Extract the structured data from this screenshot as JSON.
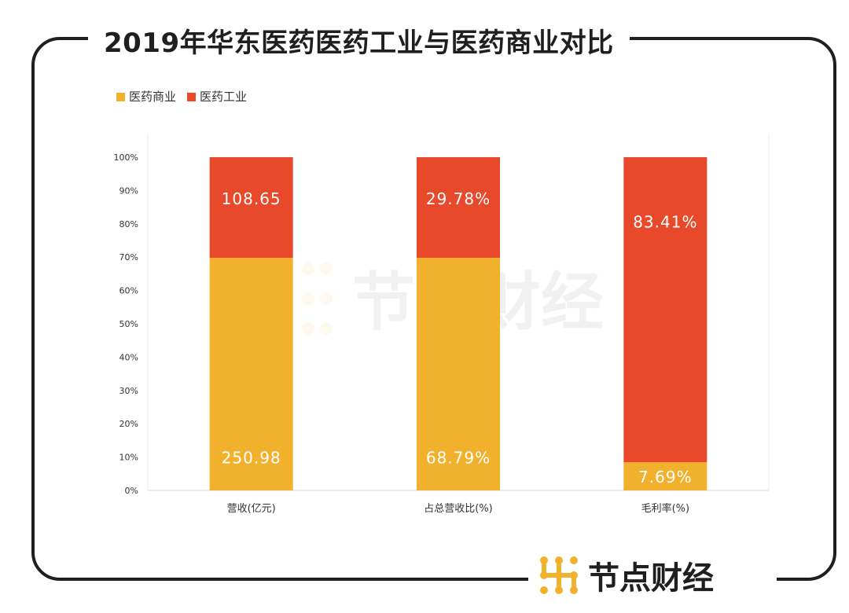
{
  "page": {
    "title": "2019年华东医药医药工业与医药商业对比",
    "brand": "节点财经",
    "watermark": "节点财经"
  },
  "colors": {
    "commerce": "#F2B12C",
    "industry": "#E8492A",
    "frame": "#1F1F1F",
    "axis_text": "#333333",
    "brand_accent": "#F2B12C"
  },
  "chart_data": {
    "type": "bar",
    "stacked": "percent",
    "title": "",
    "xlabel": "",
    "ylabel": "",
    "ylim": [
      0,
      100
    ],
    "yticks": [
      "0%",
      "10%",
      "20%",
      "30%",
      "40%",
      "50%",
      "60%",
      "70%",
      "80%",
      "90%",
      "100%"
    ],
    "grid": false,
    "legend": "top-left",
    "categories": [
      "营收(亿元)",
      "占总营收比(%)",
      "毛利率(%)"
    ],
    "series": [
      {
        "name": "医药商业",
        "color": "#F2B12C",
        "labels": [
          "250.98",
          "68.79%",
          "7.69%"
        ],
        "percent_share": [
          69.79,
          69.79,
          8.44
        ]
      },
      {
        "name": "医药工业",
        "color": "#E8492A",
        "labels": [
          "108.65",
          "29.78%",
          "83.41%"
        ],
        "percent_share": [
          30.21,
          30.21,
          91.56
        ]
      }
    ]
  }
}
